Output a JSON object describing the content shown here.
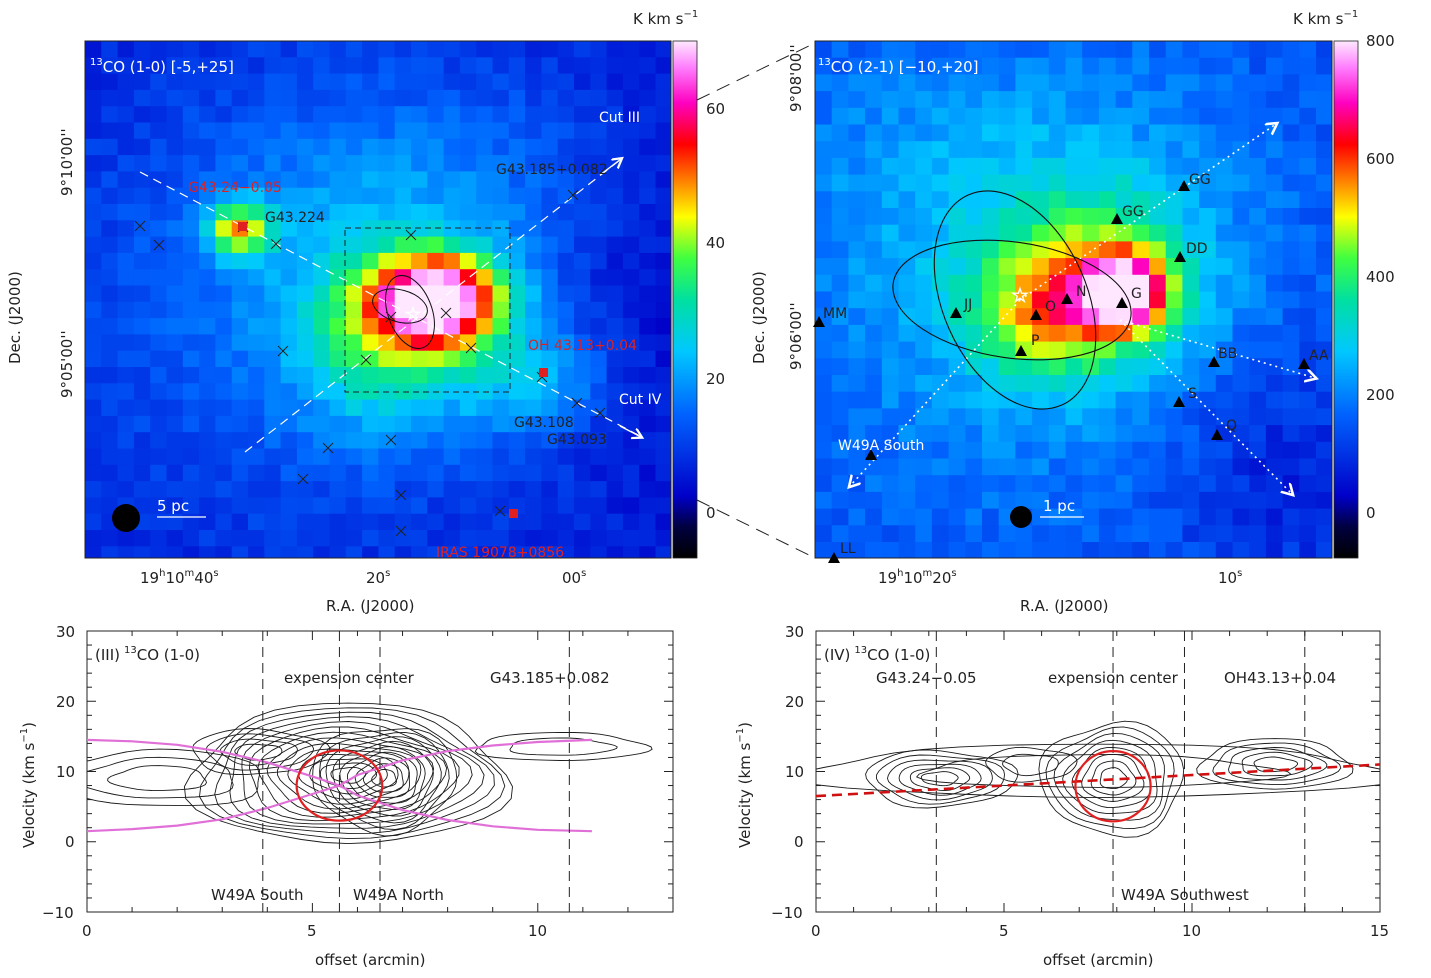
{
  "panels": {
    "map_left": {
      "title": "13CO (1-0) [-5,+25]",
      "title_sup": "13",
      "title_rest": "CO (1-0) [-5,+25]",
      "colorbar_unit": "K km s",
      "colorbar_unit_sup": "−1",
      "colorbar_ticks": [
        "60",
        "40",
        "20",
        "0"
      ],
      "ra_ticks": [
        "19h10m40s",
        "20s",
        "00s"
      ],
      "ra_tick_parts": [
        [
          "19",
          "h",
          "10",
          "m",
          "40",
          "s"
        ],
        [
          "20",
          "s"
        ],
        [
          "00",
          "s"
        ]
      ],
      "dec_ticks": [
        "9°10'00''",
        "9°05'00''"
      ],
      "xlabel": "R.A. (J2000)",
      "ylabel": "Dec. (J2000)",
      "scale_bar": "5 pc",
      "labels": {
        "g4324_red": "G43.24−0.05",
        "g43224": "G43.224",
        "g43185": "G43.185+0.082",
        "oh4313": "OH 43.13+0.04",
        "cut3": "Cut III",
        "cut4": "Cut IV",
        "g43108": "G43.108",
        "g43093": "G43.093",
        "iras": "IRAS 19078+0856"
      }
    },
    "map_right": {
      "title_sup": "13",
      "title_rest": "CO (2-1) [−10,+20]",
      "colorbar_unit": "K km s",
      "colorbar_unit_sup": "−1",
      "colorbar_ticks": [
        "800",
        "600",
        "400",
        "200",
        "0"
      ],
      "ra_ticks": [
        "19h10m20s",
        "10s"
      ],
      "dec_ticks": [
        "9°08'00''",
        "9°06'00''"
      ],
      "xlabel": "R.A. (J2000)",
      "ylabel": "Dec. (J2000)",
      "scale_bar": "1 pc",
      "sources": [
        "GG",
        "GG",
        "DD",
        "JJ",
        "O",
        "N",
        "G",
        "P",
        "MM",
        "BB",
        "AA",
        "S",
        "Q",
        "W49A South",
        "LL"
      ]
    },
    "pv_left": {
      "title": "(III) 13CO (1-0)",
      "title_pre": "(III)",
      "title_sup": "13",
      "title_rest": "CO (1-0)",
      "annotations": {
        "center": "expension center",
        "g43185": "G43.185+0.082",
        "south": "W49A South",
        "north": "W49A North"
      },
      "xlabel": "offset (arcmin)",
      "ylabel": "Velocity (km s",
      "ylabel_sup": "−1",
      "xticks": [
        "0",
        "5",
        "10"
      ],
      "yticks": [
        "30",
        "20",
        "10",
        "0",
        "−10"
      ]
    },
    "pv_right": {
      "title_pre": "(IV)",
      "title_sup": "13",
      "title_rest": "CO (1-0)",
      "annotations": {
        "g4324": "G43.24−0.05",
        "center": "expension center",
        "oh4313": "OH43.13+0.04",
        "southwest": "W49A Southwest"
      },
      "xlabel": "offset (arcmin)",
      "ylabel": "Velocity (km s",
      "ylabel_sup": "−1",
      "xticks": [
        "0",
        "5",
        "10",
        "15"
      ],
      "yticks": [
        "30",
        "20",
        "10",
        "0",
        "−10"
      ]
    }
  },
  "chart_data": [
    {
      "type": "heatmap",
      "title": "13CO (1-0) [-5,+25]",
      "xlabel": "R.A. (J2000)",
      "ylabel": "Dec. (J2000)",
      "colorbar_label": "K km s−1",
      "colorbar_range": [
        -5,
        70
      ],
      "colorbar_ticks": [
        0,
        20,
        40,
        60
      ],
      "peak_value": 65,
      "sources": [
        "G43.24−0.05",
        "G43.224",
        "G43.185+0.082",
        "OH 43.13+0.04",
        "G43.108",
        "G43.093",
        "IRAS 19078+0856"
      ],
      "cuts": [
        "Cut III",
        "Cut IV"
      ]
    },
    {
      "type": "heatmap",
      "title": "13CO (2-1) [−10,+20]",
      "xlabel": "R.A. (J2000)",
      "ylabel": "Dec. (J2000)",
      "colorbar_label": "K km s−1",
      "colorbar_range": [
        -100,
        800
      ],
      "colorbar_ticks": [
        0,
        200,
        400,
        600,
        800
      ],
      "peak_value": 780
    },
    {
      "type": "line",
      "title": "(III) 13CO (1-0)",
      "xlabel": "offset (arcmin)",
      "ylabel": "Velocity (km s−1)",
      "xlim": [
        0,
        13
      ],
      "ylim": [
        -10,
        30
      ],
      "xticks": [
        0,
        5,
        10
      ],
      "yticks": [
        -10,
        0,
        10,
        20,
        30
      ],
      "vlines": [
        3.9,
        5.6,
        6.5,
        10.7
      ],
      "circle": {
        "x": 5.6,
        "y": 8,
        "rx": 0.95,
        "ry": 5
      },
      "curves": [
        {
          "x": [
            0,
            1,
            2,
            3,
            4,
            5,
            5.6,
            6,
            7,
            8,
            9,
            10,
            11.2
          ],
          "y": [
            14.5,
            14.3,
            13.8,
            12.8,
            11.3,
            9.3,
            8.0,
            6.6,
            4.5,
            3.1,
            2.2,
            1.7,
            1.5
          ]
        },
        {
          "x": [
            0,
            1,
            2,
            3,
            4,
            5,
            5.6,
            6,
            7,
            8,
            9,
            10,
            11.2
          ],
          "y": [
            1.5,
            1.8,
            2.3,
            3.2,
            4.8,
            6.8,
            8.0,
            9.5,
            11.6,
            12.9,
            13.7,
            14.2,
            14.5
          ]
        }
      ]
    },
    {
      "type": "line",
      "title": "(IV) 13CO (1-0)",
      "xlabel": "offset (arcmin)",
      "ylabel": "Velocity (km s−1)",
      "xlim": [
        0,
        15
      ],
      "ylim": [
        -10,
        30
      ],
      "xticks": [
        0,
        5,
        10,
        15
      ],
      "yticks": [
        -10,
        0,
        10,
        20,
        30
      ],
      "vlines": [
        3.2,
        7.9,
        9.8,
        13
      ],
      "circle": {
        "x": 7.9,
        "y": 7.9,
        "rx": 1.0,
        "ry": 5
      },
      "trend_line": {
        "x": [
          0,
          15
        ],
        "y": [
          6.5,
          11
        ]
      }
    }
  ],
  "colors": {
    "contour": "#1a1a1a",
    "magenta_curve": "#e070d8",
    "circle": "#e02020",
    "trend": "#d01010",
    "red_text": "#e02020"
  }
}
